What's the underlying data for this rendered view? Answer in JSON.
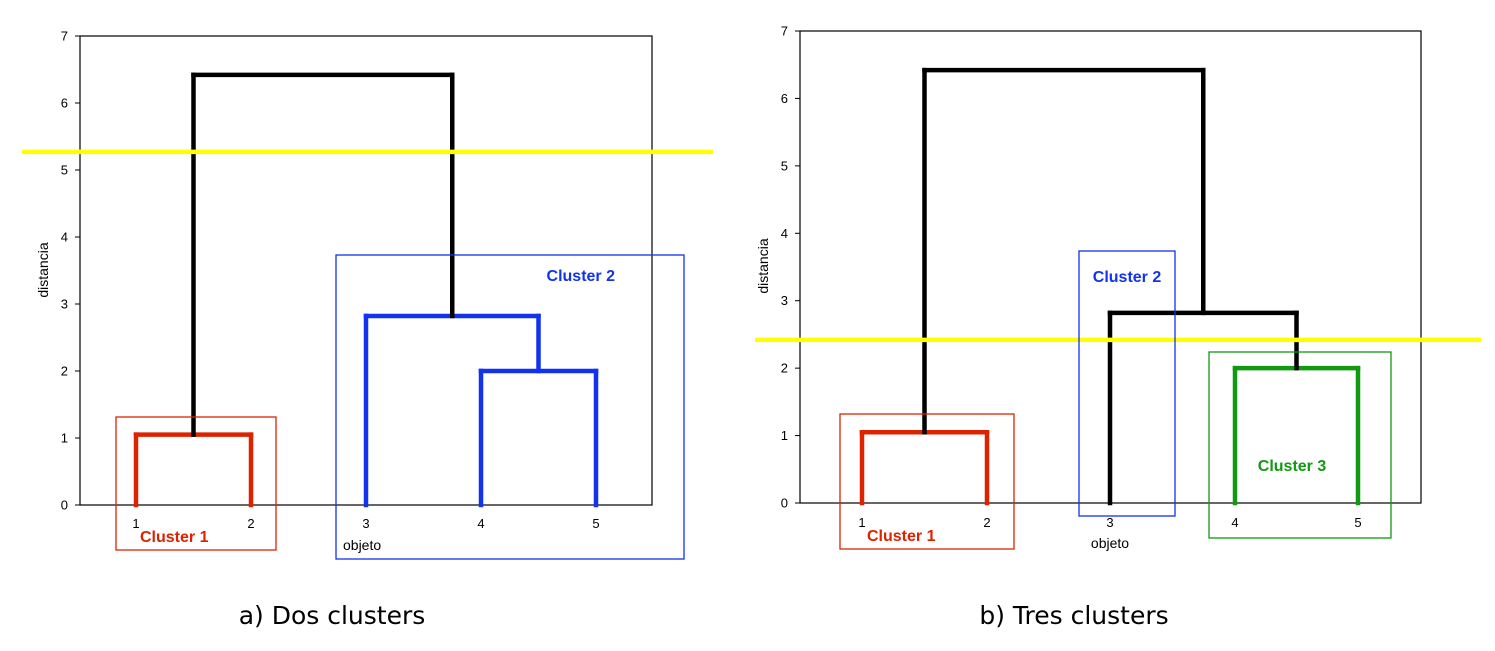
{
  "chart_data": [
    {
      "type": "dendrogram",
      "caption": "a) Dos clusters",
      "ylabel": "distancia",
      "xlabel": "objeto",
      "ylim": [
        0,
        7
      ],
      "yticks": [
        "0",
        "1",
        "2",
        "3",
        "4",
        "5",
        "6",
        "7"
      ],
      "leaves": [
        "1",
        "2",
        "3",
        "4",
        "5"
      ],
      "merges": [
        {
          "left": "1",
          "right": "2",
          "height": 1.05,
          "color": "#dd2200"
        },
        {
          "left": "4",
          "right": "5",
          "height": 2.0,
          "color": "#1133ee"
        },
        {
          "left": "3",
          "right": "(4,5)",
          "height": 2.82,
          "color": "#1133ee"
        },
        {
          "left": "(1,2)",
          "right": "(3,4,5)",
          "height": 6.42,
          "color": "#000000"
        }
      ],
      "cut_height": 5.27,
      "cut_color": "#ffff00",
      "clusters": [
        {
          "label": "Cluster 1",
          "members": [
            "1",
            "2"
          ],
          "color": "#dd2200"
        },
        {
          "label": "Cluster 2",
          "members": [
            "3",
            "4",
            "5"
          ],
          "color": "#1133ee"
        }
      ]
    },
    {
      "type": "dendrogram",
      "caption": "b) Tres clusters",
      "ylabel": "distancia",
      "xlabel": "objeto",
      "ylim": [
        0,
        7
      ],
      "yticks": [
        "0",
        "1",
        "2",
        "3",
        "4",
        "5",
        "6",
        "7"
      ],
      "leaves": [
        "1",
        "2",
        "3",
        "4",
        "5"
      ],
      "merges": [
        {
          "left": "1",
          "right": "2",
          "height": 1.05,
          "color": "#dd2200"
        },
        {
          "left": "4",
          "right": "5",
          "height": 2.0,
          "color": "#119911"
        },
        {
          "left": "3",
          "right": "(4,5)",
          "height": 2.82,
          "color": "#000000"
        },
        {
          "left": "(1,2)",
          "right": "(3,4,5)",
          "height": 6.42,
          "color": "#000000"
        }
      ],
      "cut_height": 2.42,
      "cut_color": "#ffff00",
      "clusters": [
        {
          "label": "Cluster 1",
          "members": [
            "1",
            "2"
          ],
          "color": "#dd2200"
        },
        {
          "label": "Cluster 2",
          "members": [
            "3"
          ],
          "color": "#1133ee"
        },
        {
          "label": "Cluster 3",
          "members": [
            "4",
            "5"
          ],
          "color": "#119911"
        }
      ]
    }
  ]
}
